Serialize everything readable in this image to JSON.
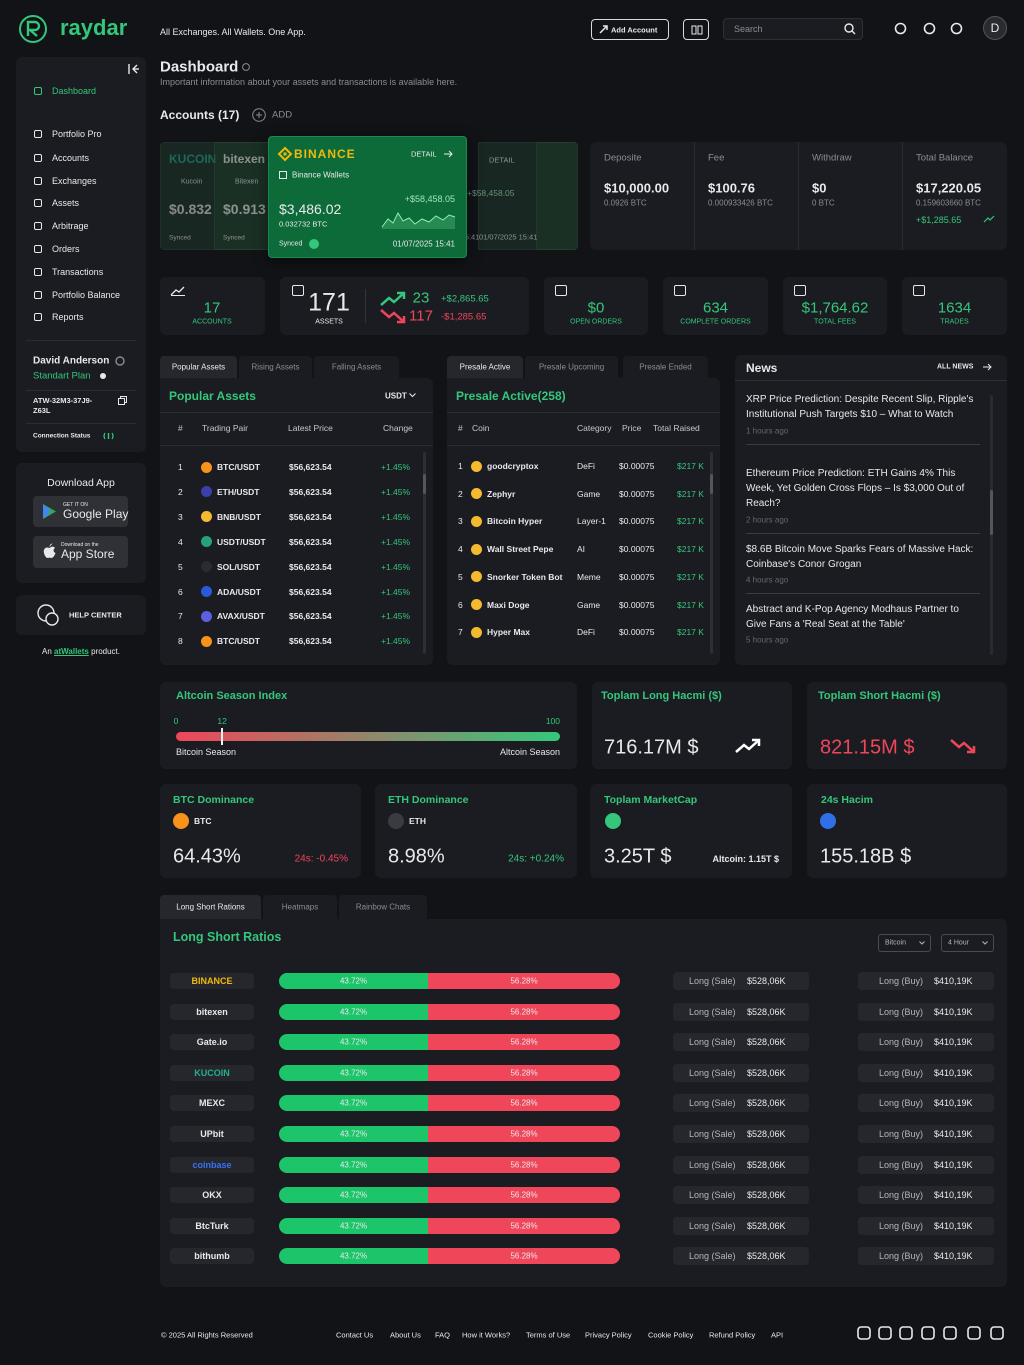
{
  "header": {
    "brand": "raydar",
    "tagline": "All Exchanges. All Wallets. One App.",
    "add_account": "Add Account",
    "search_placeholder": "Search",
    "avatar": "D"
  },
  "sidebar": {
    "nav": [
      "Dashboard",
      "Portfolio Pro",
      "Accounts",
      "Exchanges",
      "Assets",
      "Arbitrage",
      "Orders",
      "Transactions",
      "Portfolio Balance",
      "Reports"
    ],
    "user": {
      "name": "David Anderson",
      "plan": "Standart Plan",
      "id": "ATW-32M3-37J9-Z63L",
      "connection": "Connection Status"
    },
    "download": {
      "title": "Download App",
      "google_small": "GET IT ON",
      "google": "Google Play",
      "apple_small": "Download on the",
      "apple": "App Store"
    },
    "help": "HELP CENTER",
    "product": {
      "prefix": "An",
      "link": "atWallets",
      "suffix": "product."
    }
  },
  "page": {
    "title": "Dashboard",
    "subtitle": "Important information about your assets and transactions is available here."
  },
  "accounts": {
    "title": "Accounts (17)",
    "add": "ADD",
    "background_cards": [
      {
        "exchange": "KUCOIN",
        "wallet": "Kucoin",
        "balance": "$0.832",
        "status": "Synced"
      },
      {
        "exchange": "bitexen",
        "wallet": "Bitexen",
        "balance": "$0.913",
        "status": "Synced"
      }
    ],
    "right_cards": [
      {
        "detail": "DETAIL",
        "change": "+$58,458.05",
        "date": "01/07/2025  15:41"
      },
      {
        "detail": "DETAIL",
        "change": "+$58,458.05",
        "date": "01/07/2025  15:41"
      }
    ],
    "card": {
      "exchange": "BINANCE",
      "detail": "DETAIL",
      "wallet": "Binance Wallets",
      "balance": "$3,486.02",
      "btc": "0.032732 BTC",
      "change": "+$58,458.05",
      "status": "Synced",
      "date": "01/07/2025  15:41"
    }
  },
  "summary": [
    {
      "label": "Deposite",
      "value": "$10,000.00",
      "sub": "0.0926 BTC"
    },
    {
      "label": "Fee",
      "value": "$100.76",
      "sub": "0.000933426 BTC"
    },
    {
      "label": "Withdraw",
      "value": "$0",
      "sub": "0 BTC"
    },
    {
      "label": "Total Balance",
      "value": "$17,220.05",
      "sub": "0.159603660 BTC",
      "change": "+$1,285.65"
    }
  ],
  "stats": {
    "accounts": {
      "value": "17",
      "label": "ACCOUNTS"
    },
    "assets": {
      "value": "171",
      "label": "ASSETS"
    },
    "movers": {
      "up_count": "23",
      "up_value": "+$2,865.65",
      "down_count": "117",
      "down_value": "-$1,285.65"
    },
    "others": [
      {
        "value": "$0",
        "label": "OPEN ORDERS"
      },
      {
        "value": "634",
        "label": "COMPLETE ORDERS"
      },
      {
        "value": "$1,764.62",
        "label": "TOTAL FEES"
      },
      {
        "value": "1634",
        "label": "TRADES"
      }
    ]
  },
  "popular": {
    "tabs": [
      "Popular Assets",
      "Rising Assets",
      "Falling Assets"
    ],
    "title": "Popular Assets",
    "currency": "USDT",
    "columns": [
      "#",
      "Trading Pair",
      "Latest Price",
      "Change"
    ],
    "rows": [
      {
        "rank": "1",
        "pair": "BTC/USDT",
        "price": "$56,623.54",
        "change": "+1.45%",
        "color": "#f7931a"
      },
      {
        "rank": "2",
        "pair": "ETH/USDT",
        "price": "$56,623.54",
        "change": "+1.45%",
        "color": "#3c3fa8"
      },
      {
        "rank": "3",
        "pair": "BNB/USDT",
        "price": "$56,623.54",
        "change": "+1.45%",
        "color": "#f3ba2f"
      },
      {
        "rank": "4",
        "pair": "USDT/USDT",
        "price": "$56,623.54",
        "change": "+1.45%",
        "color": "#26a17b"
      },
      {
        "rank": "5",
        "pair": "SOL/USDT",
        "price": "$56,623.54",
        "change": "+1.45%",
        "color": "#2b2b33"
      },
      {
        "rank": "6",
        "pair": "ADA/USDT",
        "price": "$56,623.54",
        "change": "+1.45%",
        "color": "#2a5ada"
      },
      {
        "rank": "7",
        "pair": "AVAX/USDT",
        "price": "$56,623.54",
        "change": "+1.45%",
        "color": "#5b5fe0"
      },
      {
        "rank": "8",
        "pair": "BTC/USDT",
        "price": "$56,623.54",
        "change": "+1.45%",
        "color": "#f7931a"
      }
    ]
  },
  "presale": {
    "tabs": [
      "Presale Active",
      "Presale Upcoming",
      "Presale Ended"
    ],
    "title": "Presale Active(258)",
    "columns": [
      "#",
      "Coin",
      "Category",
      "Price",
      "Total Raised"
    ],
    "rows": [
      {
        "rank": "1",
        "coin": "goodcryptox",
        "category": "DeFi",
        "price": "$0.00075",
        "raised": "$217 K"
      },
      {
        "rank": "2",
        "coin": "Zephyr",
        "category": "Game",
        "price": "$0.00075",
        "raised": "$217 K"
      },
      {
        "rank": "3",
        "coin": "Bitcoin Hyper",
        "category": "Layer-1",
        "price": "$0.00075",
        "raised": "$217 K"
      },
      {
        "rank": "4",
        "coin": "Wall Street Pepe",
        "category": "AI",
        "price": "$0.00075",
        "raised": "$217 K"
      },
      {
        "rank": "5",
        "coin": "Snorker Token Bot",
        "category": "Meme",
        "price": "$0.00075",
        "raised": "$217 K"
      },
      {
        "rank": "6",
        "coin": "Maxi Doge",
        "category": "Game",
        "price": "$0.00075",
        "raised": "$217 K"
      },
      {
        "rank": "7",
        "coin": "Hyper Max",
        "category": "DeFi",
        "price": "$0.00075",
        "raised": "$217 K"
      }
    ]
  },
  "news": {
    "title": "News",
    "all": "ALL NEWS",
    "items": [
      {
        "title": "XRP Price Prediction: Despite Recent Slip, Ripple's Institutional Push Targets $10 – What to Watch",
        "time": "1 hours ago"
      },
      {
        "title": "Ethereum Price Prediction: ETH Gains 4% This Week, Yet Golden Cross Flops – Is $3,000 Out of Reach?",
        "time": "2 hours ago"
      },
      {
        "title": "$8.6B Bitcoin Move Sparks Fears of Massive Hack: Coinbase's Conor Grogan",
        "time": "4 hours ago"
      },
      {
        "title": "Abstract and K-Pop Agency Modhaus Partner to Give Fans a 'Real Seat at the Table'",
        "time": "5 hours ago"
      }
    ]
  },
  "altcoin": {
    "title": "Altcoin Season Index",
    "min": 0,
    "value": 12,
    "max": 100,
    "left": "Bitcoin Season",
    "right": "Altcoin Season"
  },
  "long_total": {
    "title": "Toplam Long Hacmi ($)",
    "value": "716.17M $"
  },
  "short_total": {
    "title": "Toplam Short Hacmi ($)",
    "value": "821.15M $"
  },
  "dominance": [
    {
      "title": "BTC Dominance",
      "coin": "BTC",
      "value": "64.43%",
      "change": "24s: -0.45%",
      "color": "#f7931a",
      "trend": "down"
    },
    {
      "title": "ETH Dominance",
      "coin": "ETH",
      "value": "8.98%",
      "change": "24s: +0.24%",
      "color": "#3a3b42",
      "trend": "up"
    }
  ],
  "marketcap": {
    "title": "Toplam MarketCap",
    "value": "3.25T $",
    "altcoin": "Altcoin: 1.15T $"
  },
  "volume": {
    "title": "24s Hacim",
    "value": "155.18B $"
  },
  "ratios": {
    "tabs": [
      "Long Short Rations",
      "Heatmaps",
      "Rainbow Chats"
    ],
    "title": "Long Short Ratios",
    "filters": [
      "Bitcoin",
      "4 Hour"
    ],
    "rows": [
      {
        "exchange": "BINANCE",
        "color": "#f0b90b",
        "long": 43.72,
        "long_label": "43.72%",
        "short": 56.28,
        "short_label": "56.28%",
        "sale_label": "Long (Sale)",
        "sale": "$528,06K",
        "buy_label": "Long (Buy)",
        "buy": "$410,19K"
      },
      {
        "exchange": "bitexen",
        "color": "#e9e9ec",
        "long": 43.72,
        "long_label": "43.72%",
        "short": 56.28,
        "short_label": "56.28%",
        "sale_label": "Long (Sale)",
        "sale": "$528,06K",
        "buy_label": "Long (Buy)",
        "buy": "$410,19K"
      },
      {
        "exchange": "Gate.io",
        "color": "#e9e9ec",
        "long": 43.72,
        "long_label": "43.72%",
        "short": 56.28,
        "short_label": "56.28%",
        "sale_label": "Long (Sale)",
        "sale": "$528,06K",
        "buy_label": "Long (Buy)",
        "buy": "$410,19K"
      },
      {
        "exchange": "KUCOIN",
        "color": "#23af91",
        "long": 43.72,
        "long_label": "43.72%",
        "short": 56.28,
        "short_label": "56.28%",
        "sale_label": "Long (Sale)",
        "sale": "$528,06K",
        "buy_label": "Long (Buy)",
        "buy": "$410,19K"
      },
      {
        "exchange": "MEXC",
        "color": "#e9e9ec",
        "long": 43.72,
        "long_label": "43.72%",
        "short": 56.28,
        "short_label": "56.28%",
        "sale_label": "Long (Sale)",
        "sale": "$528,06K",
        "buy_label": "Long (Buy)",
        "buy": "$410,19K"
      },
      {
        "exchange": "UPbit",
        "color": "#e9e9ec",
        "long": 43.72,
        "long_label": "43.72%",
        "short": 56.28,
        "short_label": "56.28%",
        "sale_label": "Long (Sale)",
        "sale": "$528,06K",
        "buy_label": "Long (Buy)",
        "buy": "$410,19K"
      },
      {
        "exchange": "coinbase",
        "color": "#3773f5",
        "long": 43.72,
        "long_label": "43.72%",
        "short": 56.28,
        "short_label": "56.28%",
        "sale_label": "Long (Sale)",
        "sale": "$528,06K",
        "buy_label": "Long (Buy)",
        "buy": "$410,19K"
      },
      {
        "exchange": "OKX",
        "color": "#e9e9ec",
        "long": 43.72,
        "long_label": "43.72%",
        "short": 56.28,
        "short_label": "56.28%",
        "sale_label": "Long (Sale)",
        "sale": "$528,06K",
        "buy_label": "Long (Buy)",
        "buy": "$410,19K"
      },
      {
        "exchange": "BtcTurk",
        "color": "#e9e9ec",
        "long": 43.72,
        "long_label": "43.72%",
        "short": 56.28,
        "short_label": "56.28%",
        "sale_label": "Long (Sale)",
        "sale": "$528,06K",
        "buy_label": "Long (Buy)",
        "buy": "$410,19K"
      },
      {
        "exchange": "bithumb",
        "color": "#e9e9ec",
        "long": 43.72,
        "long_label": "43.72%",
        "short": 56.28,
        "short_label": "56.28%",
        "sale_label": "Long (Sale)",
        "sale": "$528,06K",
        "buy_label": "Long (Buy)",
        "buy": "$410,19K"
      }
    ]
  },
  "footer": {
    "copyright": "© 2025 All Rights Reserved",
    "links": [
      "Contact Us",
      "About Us",
      "FAQ",
      "How it Works?",
      "Terms of Use",
      "Privacy Policy",
      "Cookie Policy",
      "Refund Policy",
      "API"
    ]
  }
}
